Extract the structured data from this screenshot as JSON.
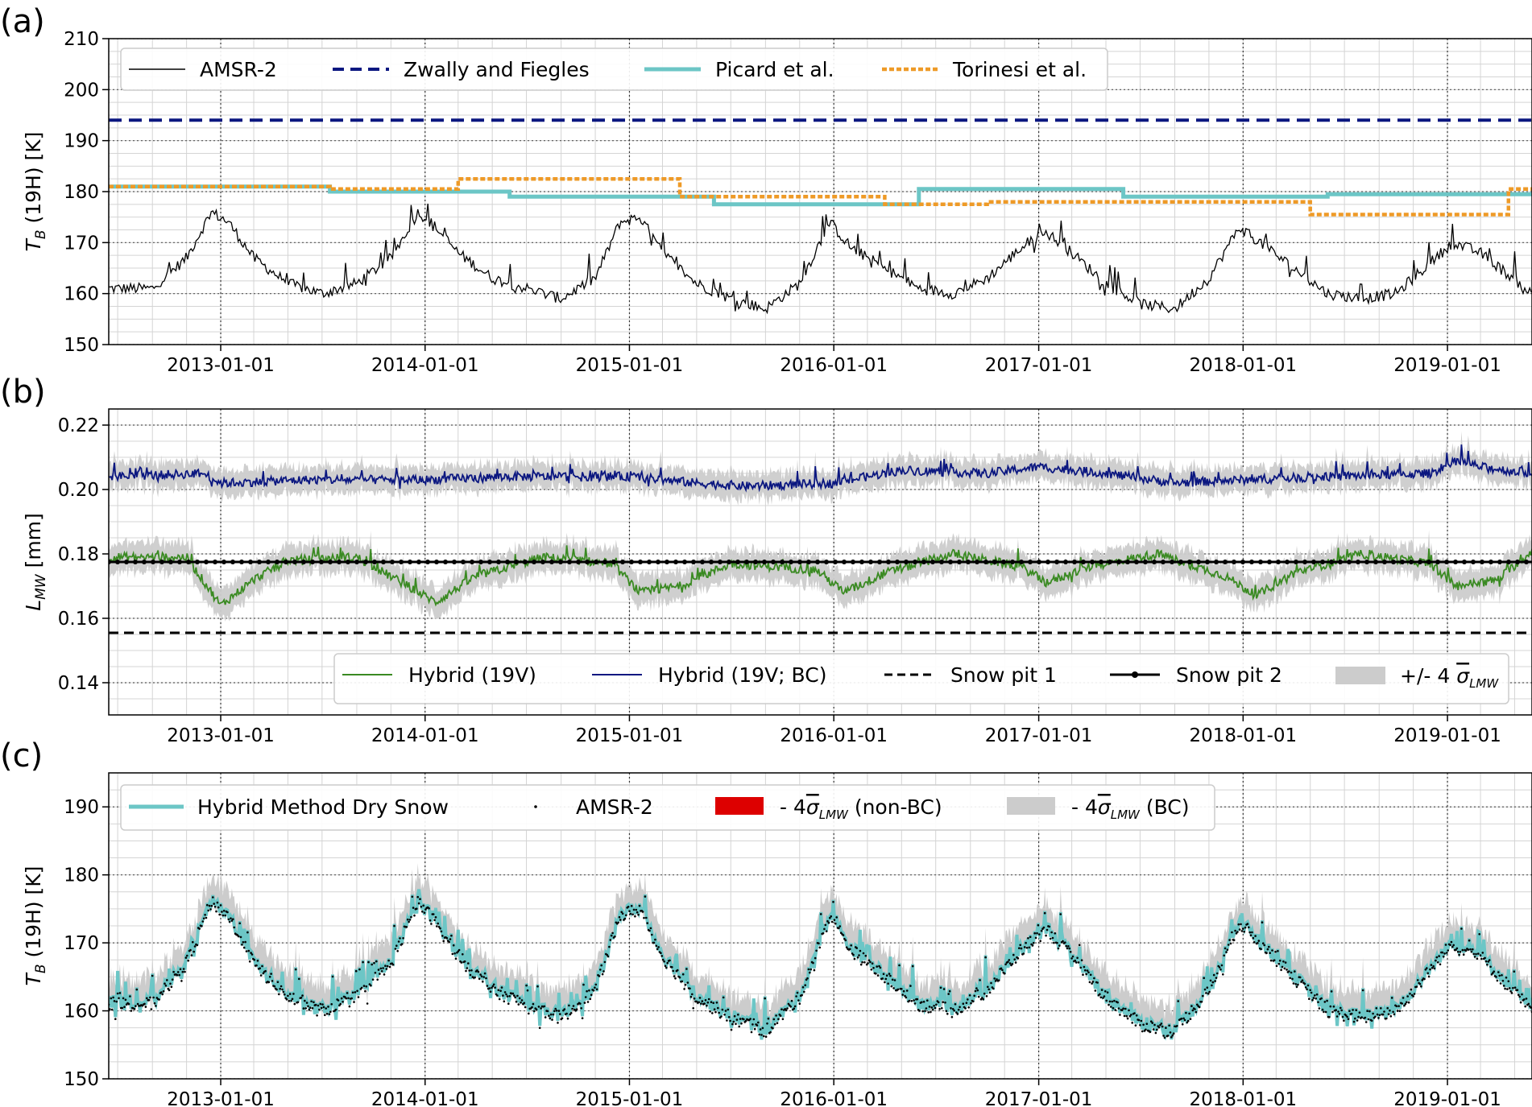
{
  "chart_data": [
    {
      "id": "a",
      "panel_label": "(a)",
      "type": "line",
      "ylabel_main": "T",
      "ylabel_sub": "B",
      "ylabel_rest": " (19H) [K]",
      "ylim": [
        150,
        210
      ],
      "yticks": [
        "150",
        "160",
        "170",
        "180",
        "190",
        "200",
        "210"
      ],
      "xlim": [
        "2012-06-15",
        "2019-06-01"
      ],
      "xticks": [
        "2013-01-01",
        "2014-01-01",
        "2015-01-01",
        "2016-01-01",
        "2017-01-01",
        "2018-01-01",
        "2019-01-01"
      ],
      "grid": true,
      "legend_position": "top",
      "series": [
        {
          "name": "AMSR-2",
          "color": "#000000",
          "style": "thin",
          "anchors": [
            [
              "2012-06-15",
              161
            ],
            [
              "2012-09-01",
              161
            ],
            [
              "2012-11-01",
              167
            ],
            [
              "2012-12-15",
              176
            ],
            [
              "2013-01-15",
              174
            ],
            [
              "2013-03-01",
              167
            ],
            [
              "2013-05-01",
              162
            ],
            [
              "2013-07-01",
              160
            ],
            [
              "2013-09-01",
              162
            ],
            [
              "2013-11-01",
              167
            ],
            [
              "2013-12-20",
              176
            ],
            [
              "2014-01-20",
              173
            ],
            [
              "2014-03-01",
              168
            ],
            [
              "2014-05-01",
              163
            ],
            [
              "2014-07-01",
              161
            ],
            [
              "2014-09-01",
              159
            ],
            [
              "2014-11-01",
              163
            ],
            [
              "2014-12-15",
              174
            ],
            [
              "2015-01-20",
              175
            ],
            [
              "2015-03-01",
              168
            ],
            [
              "2015-05-01",
              162
            ],
            [
              "2015-07-01",
              159
            ],
            [
              "2015-09-01",
              157
            ],
            [
              "2015-11-01",
              162
            ],
            [
              "2015-12-25",
              174
            ],
            [
              "2016-02-01",
              169
            ],
            [
              "2016-04-01",
              165
            ],
            [
              "2016-06-01",
              161
            ],
            [
              "2016-08-01",
              160
            ],
            [
              "2016-10-01",
              163
            ],
            [
              "2016-12-01",
              169
            ],
            [
              "2017-01-15",
              172
            ],
            [
              "2017-03-01",
              168
            ],
            [
              "2017-05-01",
              162
            ],
            [
              "2017-07-01",
              158
            ],
            [
              "2017-09-01",
              157
            ],
            [
              "2017-11-01",
              163
            ],
            [
              "2017-12-25",
              173
            ],
            [
              "2018-02-01",
              170
            ],
            [
              "2018-04-01",
              165
            ],
            [
              "2018-06-01",
              160
            ],
            [
              "2018-08-01",
              159
            ],
            [
              "2018-10-01",
              160
            ],
            [
              "2018-12-01",
              166
            ],
            [
              "2019-01-10",
              170
            ],
            [
              "2019-03-01",
              168
            ],
            [
              "2019-06-01",
              160
            ]
          ]
        },
        {
          "name": "Zwally and Fiegles",
          "color": "#0b1780",
          "style": "dashed",
          "steps": [
            [
              "2012-06-15",
              "2019-06-01",
              194
            ]
          ]
        },
        {
          "name": "Picard et al.",
          "color": "#6cc6c6",
          "style": "thick",
          "steps": [
            [
              "2012-06-15",
              "2013-07-15",
              181
            ],
            [
              "2013-07-15",
              "2014-06-01",
              180
            ],
            [
              "2014-06-01",
              "2015-06-01",
              179
            ],
            [
              "2015-06-01",
              "2016-06-01",
              177.5
            ],
            [
              "2016-06-01",
              "2017-06-01",
              180.5
            ],
            [
              "2017-06-01",
              "2018-06-01",
              179
            ],
            [
              "2018-06-01",
              "2019-06-01",
              179.5
            ]
          ]
        },
        {
          "name": "Torinesi et al.",
          "color": "#ee9a27",
          "style": "dotted",
          "steps": [
            [
              "2012-06-15",
              "2013-07-15",
              181
            ],
            [
              "2013-07-15",
              "2014-03-01",
              180.5
            ],
            [
              "2014-03-01",
              "2015-04-01",
              182.5
            ],
            [
              "2015-04-01",
              "2016-04-01",
              179
            ],
            [
              "2016-04-01",
              "2016-10-01",
              177.5
            ],
            [
              "2016-10-01",
              "2017-05-01",
              178
            ],
            [
              "2017-05-01",
              "2018-05-01",
              178
            ],
            [
              "2018-05-01",
              "2019-04-20",
              175.5
            ],
            [
              "2019-04-20",
              "2019-06-01",
              180.5
            ]
          ]
        }
      ]
    },
    {
      "id": "b",
      "panel_label": "(b)",
      "type": "line",
      "ylabel_main": "L",
      "ylabel_sub": "MW",
      "ylabel_rest": " [mm]",
      "ylim": [
        0.13,
        0.225
      ],
      "yticks": [
        "0.14",
        "0.16",
        "0.18",
        "0.20",
        "0.22"
      ],
      "xlim": [
        "2012-06-15",
        "2019-06-01"
      ],
      "xticks": [
        "2013-01-01",
        "2014-01-01",
        "2015-01-01",
        "2016-01-01",
        "2017-01-01",
        "2018-01-01",
        "2019-01-01"
      ],
      "grid": true,
      "legend_position": "lower right",
      "series": [
        {
          "name": "Hybrid (19V)",
          "color": "#3a8a22",
          "style": "noisy",
          "band": 0.0045,
          "anchors": [
            [
              "2012-06-15",
              0.179
            ],
            [
              "2012-11-01",
              0.179
            ],
            [
              "2013-01-01",
              0.164
            ],
            [
              "2013-03-01",
              0.172
            ],
            [
              "2013-05-01",
              0.178
            ],
            [
              "2013-09-01",
              0.179
            ],
            [
              "2013-12-01",
              0.17
            ],
            [
              "2014-01-20",
              0.165
            ],
            [
              "2014-04-01",
              0.173
            ],
            [
              "2014-08-01",
              0.179
            ],
            [
              "2014-12-01",
              0.177
            ],
            [
              "2015-01-20",
              0.168
            ],
            [
              "2015-04-01",
              0.17
            ],
            [
              "2015-07-01",
              0.177
            ],
            [
              "2015-12-01",
              0.175
            ],
            [
              "2016-01-20",
              0.168
            ],
            [
              "2016-04-01",
              0.174
            ],
            [
              "2016-08-01",
              0.18
            ],
            [
              "2016-12-01",
              0.176
            ],
            [
              "2017-01-15",
              0.171
            ],
            [
              "2017-04-01",
              0.176
            ],
            [
              "2017-08-01",
              0.18
            ],
            [
              "2017-12-01",
              0.173
            ],
            [
              "2018-01-25",
              0.167
            ],
            [
              "2018-04-01",
              0.174
            ],
            [
              "2018-08-01",
              0.18
            ],
            [
              "2018-12-01",
              0.177
            ],
            [
              "2019-01-15",
              0.17
            ],
            [
              "2019-04-01",
              0.172
            ],
            [
              "2019-06-01",
              0.181
            ]
          ]
        },
        {
          "name": "Hybrid (19V; BC)",
          "color": "#0b1780",
          "style": "noisy",
          "band": 0.004,
          "anchors": [
            [
              "2012-06-15",
              0.204
            ],
            [
              "2012-12-01",
              0.205
            ],
            [
              "2013-01-01",
              0.202
            ],
            [
              "2013-06-01",
              0.203
            ],
            [
              "2014-01-01",
              0.203
            ],
            [
              "2014-06-01",
              0.204
            ],
            [
              "2015-01-01",
              0.204
            ],
            [
              "2015-05-01",
              0.202
            ],
            [
              "2015-08-01",
              0.201
            ],
            [
              "2016-01-01",
              0.202
            ],
            [
              "2016-05-01",
              0.206
            ],
            [
              "2016-10-01",
              0.205
            ],
            [
              "2017-01-01",
              0.207
            ],
            [
              "2017-05-01",
              0.205
            ],
            [
              "2017-09-01",
              0.202
            ],
            [
              "2018-01-01",
              0.203
            ],
            [
              "2018-06-01",
              0.204
            ],
            [
              "2018-12-01",
              0.205
            ],
            [
              "2019-01-20",
              0.209
            ],
            [
              "2019-03-01",
              0.207
            ],
            [
              "2019-06-01",
              0.205
            ]
          ]
        },
        {
          "name": "Snow pit 1",
          "color": "#000000",
          "style": "dashed",
          "value": 0.1555
        },
        {
          "name": "Snow pit 2",
          "color": "#000000",
          "style": "dots",
          "value": 0.1775
        },
        {
          "name": "+/- 4 σ",
          "legend_math": "+/- 4 ",
          "legend_sigma": "σ",
          "legend_sigma_sub": "LMW",
          "color": "#cccccc",
          "style": "band"
        }
      ]
    },
    {
      "id": "c",
      "panel_label": "(c)",
      "type": "line",
      "ylabel_main": "T",
      "ylabel_sub": "B",
      "ylabel_rest": " (19H) [K]",
      "ylim": [
        150,
        195
      ],
      "yticks": [
        "150",
        "160",
        "170",
        "180",
        "190"
      ],
      "xlim": [
        "2012-06-15",
        "2019-06-01"
      ],
      "xticks": [
        "2013-01-01",
        "2014-01-01",
        "2015-01-01",
        "2016-01-01",
        "2017-01-01",
        "2018-01-01",
        "2019-01-01"
      ],
      "grid": true,
      "legend_position": "top",
      "series": [
        {
          "name": "Hybrid Method Dry Snow",
          "color": "#6cc6c6",
          "style": "thick"
        },
        {
          "name": "AMSR-2",
          "color": "#000000",
          "style": "dots"
        },
        {
          "name": "- 4σ (non-BC)",
          "legend_math": "- 4",
          "legend_sigma": "σ",
          "legend_sigma_sub": "LMW",
          "legend_rest": " (non-BC)",
          "color": "#dd0000",
          "style": "band"
        },
        {
          "name": "- 4σ (BC)",
          "legend_math": "- 4",
          "legend_sigma": "σ",
          "legend_sigma_sub": "LMW",
          "legend_rest": " (BC)",
          "color": "#cccccc",
          "style": "band"
        }
      ]
    }
  ]
}
